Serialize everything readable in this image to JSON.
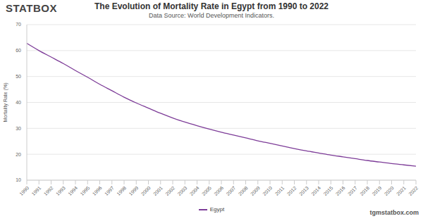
{
  "chart_data": {
    "type": "line",
    "title": "The Evolution of Mortality Rate in Egypt from 1990 to 2022",
    "subtitle": "Data Source: World Development Indicators.",
    "y_label": "Mortality Rate (%)",
    "annotations": [
      "STATBOX",
      "tgmstatbox.com"
    ],
    "categories": [
      "1990",
      "1991",
      "1992",
      "1993",
      "1994",
      "1995",
      "1996",
      "1997",
      "1998",
      "1999",
      "2000",
      "2001",
      "2002",
      "2003",
      "2004",
      "2005",
      "2006",
      "2007",
      "2008",
      "2009",
      "2010",
      "2011",
      "2012",
      "2013",
      "2014",
      "2015",
      "2016",
      "2017",
      "2018",
      "2019",
      "2020",
      "2021",
      "2022"
    ],
    "series": [
      {
        "name": "Egypt",
        "color": "#7d3c98",
        "values": [
          62.8,
          60.0,
          57.5,
          55.0,
          52.3,
          49.7,
          47.0,
          44.5,
          42.0,
          39.8,
          37.8,
          35.8,
          34.0,
          32.4,
          31.0,
          29.7,
          28.5,
          27.4,
          26.3,
          25.2,
          24.2,
          23.2,
          22.2,
          21.3,
          20.5,
          19.7,
          19.0,
          18.3,
          17.6,
          17.0,
          16.4,
          15.9,
          15.4
        ]
      }
    ],
    "ylim": [
      10,
      70
    ],
    "yticks": [
      10,
      20,
      30,
      40,
      50,
      60,
      70
    ],
    "grid": true,
    "legend": "bottom"
  }
}
